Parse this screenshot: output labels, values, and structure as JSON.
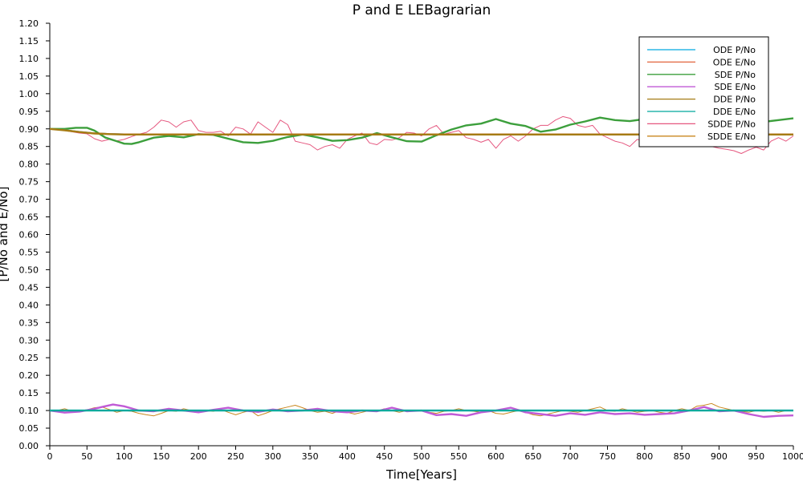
{
  "chart_data": {
    "type": "line",
    "title": "P and E LEBagrarian",
    "xlabel": "Time[Years]",
    "ylabel": "[P/No and E/No]",
    "xlim": [
      0,
      1000
    ],
    "ylim": [
      0,
      1.2
    ],
    "xticks": [
      "0",
      "50",
      "100",
      "150",
      "200",
      "250",
      "300",
      "350",
      "400",
      "450",
      "500",
      "550",
      "600",
      "650",
      "700",
      "750",
      "800",
      "850",
      "900",
      "950",
      "1000"
    ],
    "yticks": [
      "0.00",
      "0.05",
      "0.10",
      "0.15",
      "0.20",
      "0.25",
      "0.30",
      "0.35",
      "0.40",
      "0.45",
      "0.50",
      "0.55",
      "0.60",
      "0.65",
      "0.70",
      "0.75",
      "0.80",
      "0.85",
      "0.90",
      "0.95",
      "1.00",
      "1.05",
      "1.10",
      "1.15",
      "1.20"
    ],
    "grid": false,
    "legend_position": "top-right",
    "colors": {
      "ode_p": "#00a9e0",
      "ode_e": "#e2643d",
      "sde_p": "#3c9f3c",
      "sde_e": "#c05ad6",
      "dde_p": "#a57c14",
      "dde_e": "#00a89c",
      "sdde_p": "#e5577f",
      "sdde_e": "#c9871f"
    },
    "series": [
      {
        "name": "ODE P/No",
        "color_key": "ode_p",
        "x": [
          0,
          20,
          40,
          60,
          80,
          100,
          150,
          200,
          300,
          400,
          500,
          600,
          700,
          800,
          900,
          1000
        ],
        "y": [
          0.9,
          0.897,
          0.892,
          0.888,
          0.886,
          0.885,
          0.885,
          0.885,
          0.885,
          0.885,
          0.885,
          0.885,
          0.885,
          0.885,
          0.885,
          0.885
        ]
      },
      {
        "name": "ODE E/No",
        "color_key": "ode_e",
        "x": [
          0,
          20,
          40,
          60,
          80,
          100,
          150,
          200,
          300,
          400,
          500,
          600,
          700,
          800,
          900,
          1000
        ],
        "y": [
          0.9,
          0.896,
          0.891,
          0.888,
          0.886,
          0.885,
          0.885,
          0.885,
          0.885,
          0.885,
          0.885,
          0.885,
          0.885,
          0.885,
          0.885,
          0.885
        ]
      },
      {
        "name": "SDE P/No",
        "color_key": "sde_p",
        "x": [
          0,
          20,
          35,
          50,
          60,
          75,
          90,
          100,
          110,
          120,
          140,
          160,
          180,
          200,
          220,
          240,
          260,
          280,
          300,
          320,
          340,
          360,
          380,
          400,
          420,
          440,
          460,
          480,
          500,
          520,
          540,
          560,
          580,
          600,
          620,
          640,
          660,
          680,
          700,
          720,
          740,
          760,
          780,
          800,
          820,
          840,
          860,
          880,
          900,
          920,
          940,
          960,
          980,
          1000
        ],
        "y": [
          0.9,
          0.9,
          0.903,
          0.903,
          0.895,
          0.875,
          0.865,
          0.858,
          0.857,
          0.862,
          0.875,
          0.88,
          0.876,
          0.885,
          0.883,
          0.872,
          0.862,
          0.86,
          0.866,
          0.877,
          0.884,
          0.876,
          0.866,
          0.868,
          0.875,
          0.888,
          0.876,
          0.865,
          0.864,
          0.882,
          0.898,
          0.91,
          0.915,
          0.928,
          0.915,
          0.908,
          0.892,
          0.898,
          0.912,
          0.921,
          0.932,
          0.925,
          0.922,
          0.928,
          0.925,
          0.915,
          0.905,
          0.895,
          0.9,
          0.91,
          0.915,
          0.92,
          0.925,
          0.93
        ]
      },
      {
        "name": "SDE E/No",
        "color_key": "sde_e",
        "x": [
          0,
          20,
          40,
          60,
          70,
          85,
          100,
          120,
          140,
          160,
          180,
          200,
          220,
          240,
          260,
          280,
          300,
          320,
          340,
          360,
          380,
          400,
          420,
          440,
          460,
          480,
          500,
          520,
          540,
          560,
          580,
          600,
          620,
          640,
          660,
          680,
          700,
          720,
          740,
          760,
          780,
          800,
          820,
          840,
          860,
          880,
          900,
          920,
          940,
          960,
          980,
          1000
        ],
        "y": [
          0.1,
          0.094,
          0.097,
          0.105,
          0.11,
          0.117,
          0.112,
          0.1,
          0.098,
          0.105,
          0.1,
          0.095,
          0.102,
          0.108,
          0.1,
          0.096,
          0.103,
          0.098,
          0.1,
          0.105,
          0.098,
          0.095,
          0.1,
          0.098,
          0.108,
          0.098,
          0.1,
          0.087,
          0.09,
          0.085,
          0.095,
          0.1,
          0.108,
          0.095,
          0.09,
          0.085,
          0.092,
          0.088,
          0.095,
          0.09,
          0.092,
          0.088,
          0.09,
          0.092,
          0.1,
          0.11,
          0.098,
          0.1,
          0.09,
          0.082,
          0.085,
          0.086
        ]
      },
      {
        "name": "DDE P/No",
        "color_key": "dde_p",
        "x": [
          0,
          20,
          40,
          60,
          80,
          100,
          150,
          200,
          300,
          400,
          500,
          600,
          700,
          800,
          900,
          1000
        ],
        "y": [
          0.9,
          0.896,
          0.891,
          0.887,
          0.885,
          0.884,
          0.884,
          0.884,
          0.884,
          0.884,
          0.884,
          0.884,
          0.884,
          0.884,
          0.884,
          0.884
        ]
      },
      {
        "name": "DDE E/No",
        "color_key": "dde_e",
        "x": [
          0,
          100,
          200,
          300,
          400,
          500,
          600,
          700,
          800,
          900,
          1000
        ],
        "y": [
          0.1,
          0.1,
          0.1,
          0.1,
          0.1,
          0.1,
          0.1,
          0.1,
          0.1,
          0.1,
          0.1
        ]
      },
      {
        "name": "SDDE P/No",
        "color_key": "sdde_p",
        "x": [
          0,
          20,
          40,
          50,
          60,
          70,
          80,
          90,
          100,
          110,
          120,
          130,
          140,
          150,
          160,
          170,
          180,
          190,
          200,
          210,
          220,
          230,
          240,
          250,
          260,
          270,
          280,
          290,
          300,
          310,
          320,
          330,
          340,
          350,
          360,
          370,
          380,
          390,
          400,
          410,
          420,
          430,
          440,
          450,
          460,
          470,
          480,
          490,
          500,
          510,
          520,
          530,
          540,
          550,
          560,
          570,
          580,
          590,
          600,
          610,
          620,
          630,
          640,
          650,
          660,
          670,
          680,
          690,
          700,
          710,
          720,
          730,
          740,
          750,
          760,
          770,
          780,
          790,
          800,
          810,
          820,
          830,
          840,
          850,
          860,
          870,
          880,
          890,
          900,
          910,
          920,
          930,
          940,
          950,
          960,
          970,
          980,
          990,
          1000
        ],
        "y": [
          0.9,
          0.895,
          0.888,
          0.886,
          0.872,
          0.865,
          0.87,
          0.866,
          0.87,
          0.878,
          0.885,
          0.89,
          0.905,
          0.925,
          0.92,
          0.905,
          0.92,
          0.925,
          0.895,
          0.89,
          0.89,
          0.893,
          0.88,
          0.905,
          0.9,
          0.885,
          0.92,
          0.905,
          0.89,
          0.925,
          0.912,
          0.865,
          0.86,
          0.855,
          0.84,
          0.85,
          0.855,
          0.845,
          0.87,
          0.88,
          0.888,
          0.86,
          0.855,
          0.87,
          0.868,
          0.875,
          0.89,
          0.888,
          0.88,
          0.9,
          0.91,
          0.885,
          0.89,
          0.895,
          0.875,
          0.87,
          0.862,
          0.87,
          0.845,
          0.87,
          0.88,
          0.865,
          0.88,
          0.9,
          0.91,
          0.91,
          0.925,
          0.935,
          0.93,
          0.91,
          0.905,
          0.91,
          0.885,
          0.875,
          0.865,
          0.86,
          0.85,
          0.87,
          0.865,
          0.87,
          0.88,
          0.89,
          0.87,
          0.878,
          0.86,
          0.85,
          0.86,
          0.85,
          0.845,
          0.842,
          0.838,
          0.83,
          0.84,
          0.848,
          0.84,
          0.865,
          0.875,
          0.865,
          0.88
        ]
      },
      {
        "name": "SDDE E/No",
        "color_key": "sdde_e",
        "x": [
          0,
          10,
          20,
          30,
          40,
          50,
          60,
          70,
          80,
          90,
          100,
          110,
          120,
          130,
          140,
          150,
          160,
          170,
          180,
          190,
          200,
          210,
          220,
          230,
          240,
          250,
          260,
          270,
          280,
          290,
          300,
          310,
          320,
          330,
          340,
          350,
          360,
          370,
          380,
          390,
          400,
          410,
          420,
          430,
          440,
          450,
          460,
          470,
          480,
          490,
          500,
          510,
          520,
          530,
          540,
          550,
          560,
          570,
          580,
          590,
          600,
          610,
          620,
          630,
          640,
          650,
          660,
          670,
          680,
          690,
          700,
          710,
          720,
          730,
          740,
          750,
          760,
          770,
          780,
          790,
          800,
          810,
          820,
          830,
          840,
          850,
          860,
          870,
          880,
          890,
          900,
          910,
          920,
          930,
          940,
          950,
          960,
          970,
          980,
          990,
          1000
        ],
        "y": [
          0.1,
          0.1,
          0.105,
          0.098,
          0.1,
          0.102,
          0.108,
          0.11,
          0.103,
          0.095,
          0.1,
          0.098,
          0.092,
          0.088,
          0.085,
          0.092,
          0.1,
          0.098,
          0.105,
          0.1,
          0.095,
          0.1,
          0.098,
          0.103,
          0.095,
          0.088,
          0.095,
          0.1,
          0.085,
          0.092,
          0.1,
          0.105,
          0.11,
          0.115,
          0.108,
          0.1,
          0.095,
          0.098,
          0.092,
          0.1,
          0.095,
          0.09,
          0.095,
          0.1,
          0.098,
          0.105,
          0.1,
          0.095,
          0.1,
          0.098,
          0.1,
          0.095,
          0.092,
          0.098,
          0.1,
          0.105,
          0.1,
          0.098,
          0.095,
          0.1,
          0.092,
          0.09,
          0.095,
          0.1,
          0.095,
          0.088,
          0.085,
          0.09,
          0.095,
          0.1,
          0.098,
          0.095,
          0.1,
          0.105,
          0.11,
          0.1,
          0.098,
          0.105,
          0.1,
          0.095,
          0.098,
          0.1,
          0.095,
          0.092,
          0.1,
          0.105,
          0.1,
          0.112,
          0.115,
          0.12,
          0.11,
          0.105,
          0.1,
          0.098,
          0.095,
          0.1,
          0.098,
          0.1,
          0.095,
          0.1,
          0.1
        ]
      }
    ]
  }
}
